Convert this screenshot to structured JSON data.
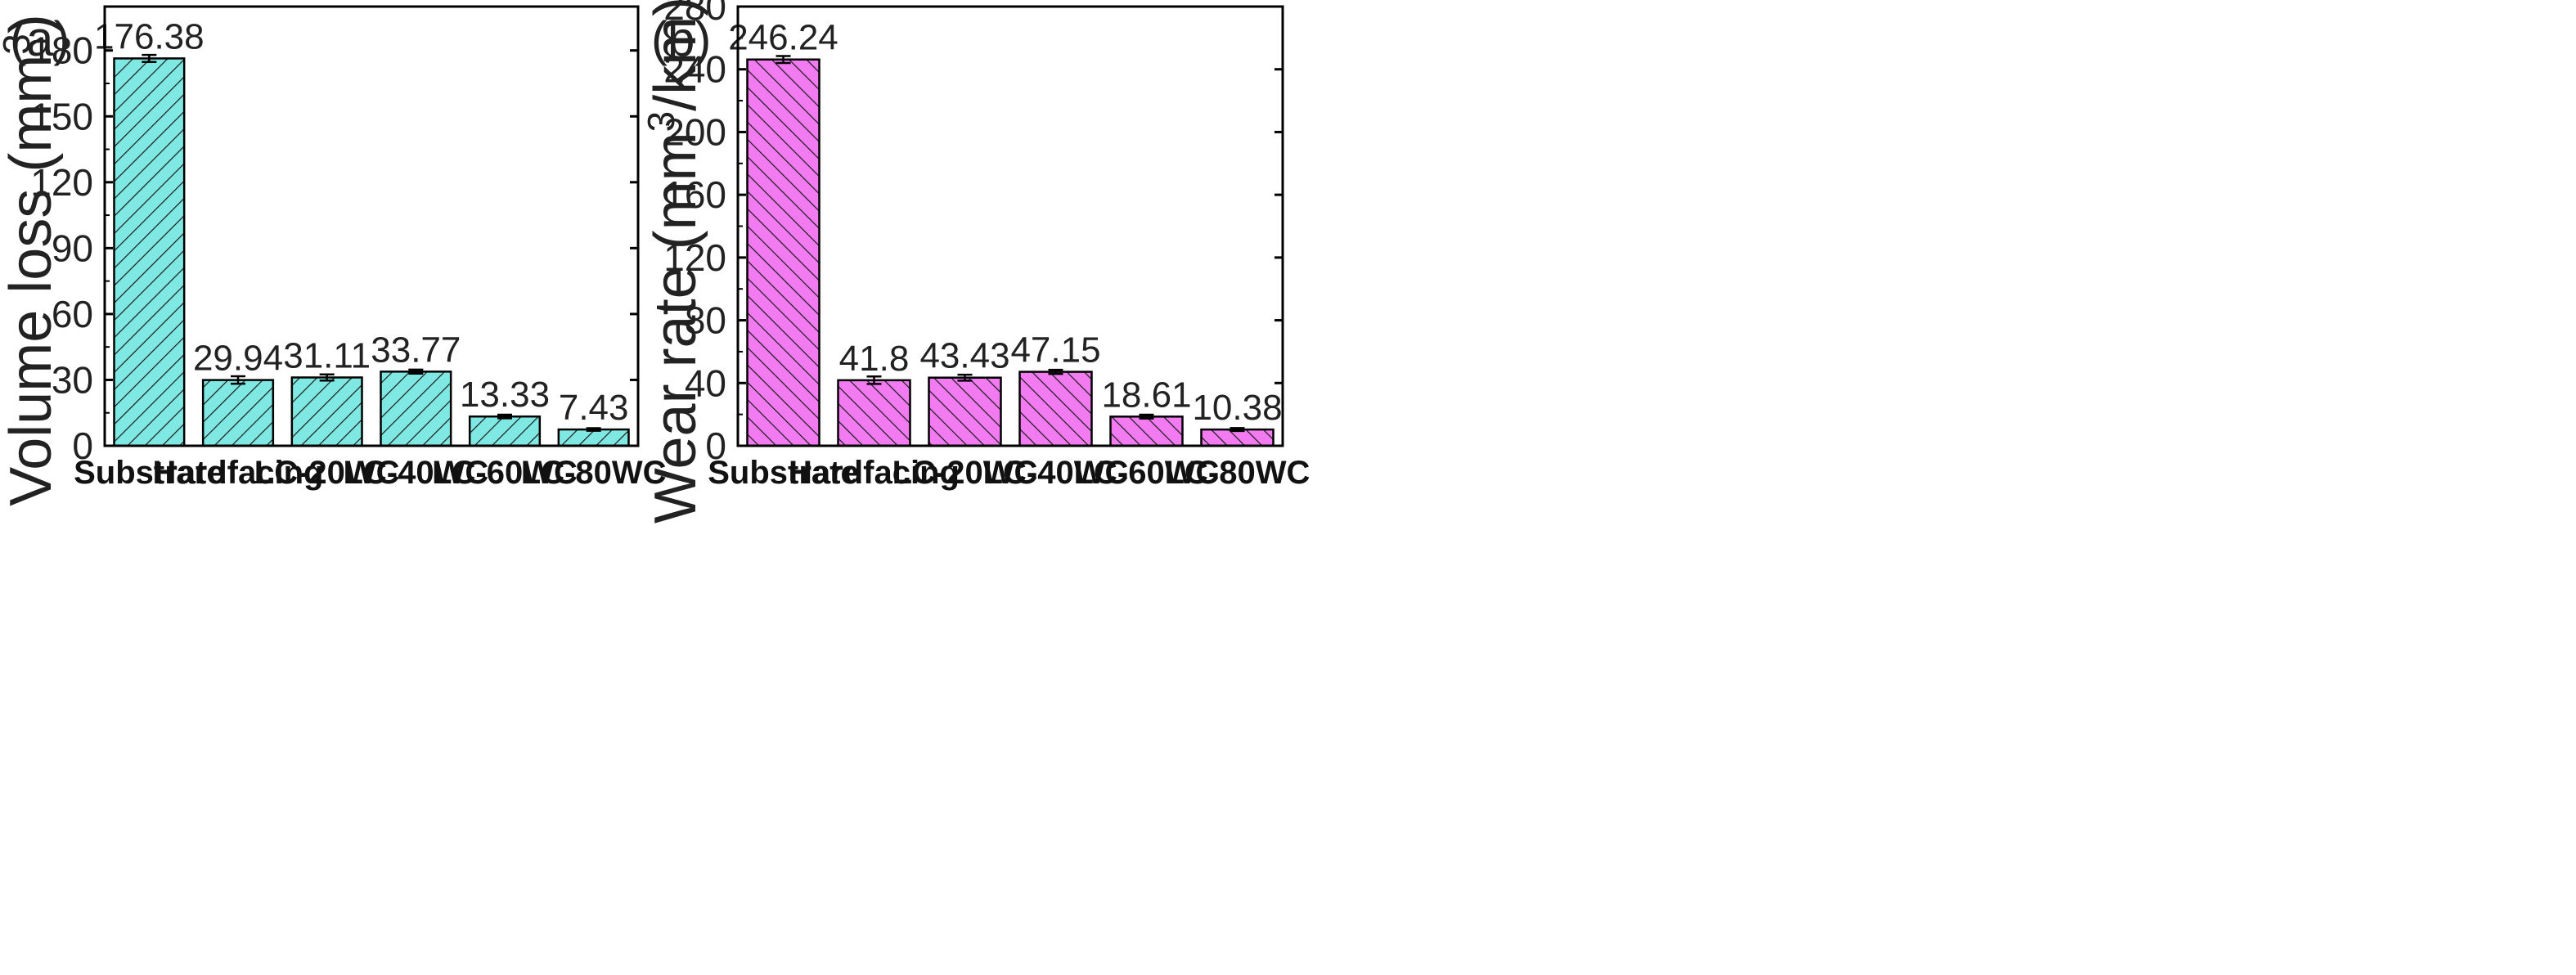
{
  "chart_data": [
    {
      "type": "bar",
      "panel_label": "(a)",
      "categories": [
        "Substrate",
        "Hardfacing",
        "LC-20WC",
        "LC-40WC",
        "LC-60WC",
        "LC-80WC"
      ],
      "values": [
        176.38,
        29.94,
        31.11,
        33.77,
        13.33,
        7.43
      ],
      "errors": [
        1.6,
        1.7,
        1.4,
        0.9,
        0.8,
        0.6
      ],
      "value_labels": [
        "176.38",
        "29.94",
        "31.11",
        "33.77",
        "13.33",
        "7.43"
      ],
      "ylabel_main": "Volume loss (mm",
      "ylabel_sup": "3",
      "ylabel_tail": ")",
      "ylim": [
        0,
        200
      ],
      "yticks": [
        0,
        30,
        60,
        90,
        120,
        150,
        180
      ],
      "ytick_labels": [
        "0",
        "30",
        "60",
        "90",
        "120",
        "150",
        "180"
      ],
      "bar_color": "#7fe8e2",
      "hatch_color": "#1a1a1a"
    },
    {
      "type": "bar",
      "panel_label": "(b)",
      "categories": [
        "Substrate",
        "Hardfacing",
        "LC-20WC",
        "LC-40WC",
        "LC-60WC",
        "LC-80WC"
      ],
      "values": [
        246.24,
        41.8,
        43.43,
        47.15,
        18.61,
        10.38
      ],
      "errors": [
        2.2,
        2.4,
        1.9,
        1.3,
        1.2,
        0.9
      ],
      "value_labels": [
        "246.24",
        "41.8",
        "43.43",
        "47.15",
        "18.61",
        "10.38"
      ],
      "ylabel_main": "Wear rate (mm",
      "ylabel_sup": "3",
      "ylabel_tail": "/km)",
      "ylim": [
        0,
        280
      ],
      "yticks": [
        0,
        40,
        80,
        120,
        160,
        200,
        240,
        280
      ],
      "ytick_labels": [
        "0",
        "40",
        "80",
        "120",
        "160",
        "200",
        "240",
        "280"
      ],
      "bar_color": "#f27bf2",
      "hatch_color": "#1a1a1a"
    }
  ]
}
